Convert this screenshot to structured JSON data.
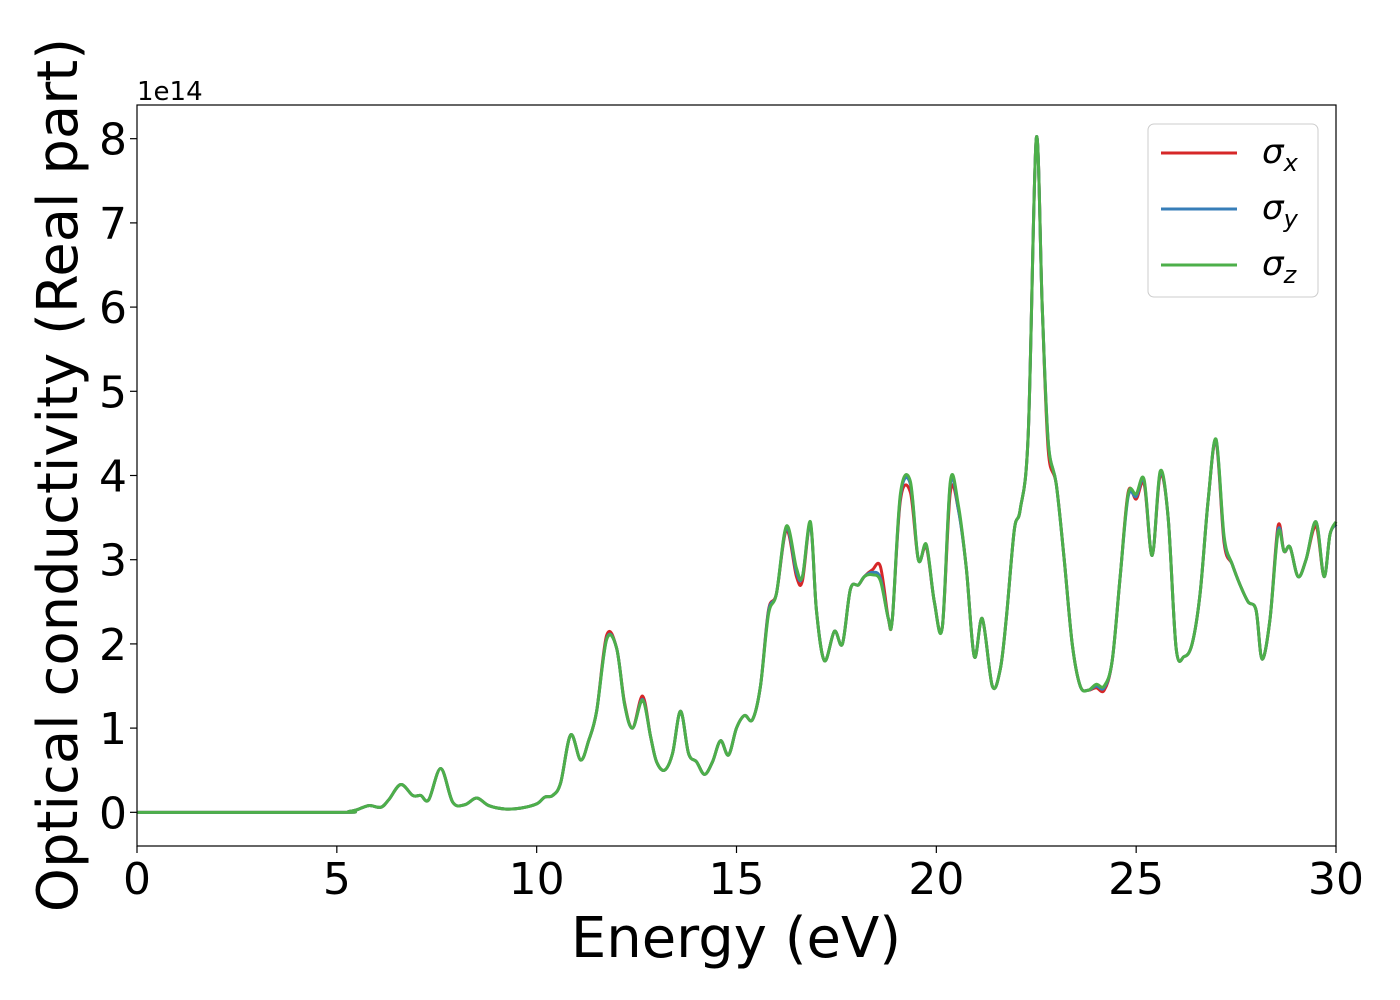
{
  "chart_data": {
    "type": "line",
    "xlabel": "Energy (eV)",
    "ylabel": "Optical conductivity (Real part)",
    "offset_text": "1e14",
    "xlim": [
      0,
      30
    ],
    "ylim": [
      -0.4,
      8.4
    ],
    "y_multiplier": 100000000000000.0,
    "xticks": [
      0,
      5,
      10,
      15,
      20,
      25,
      30
    ],
    "xtick_labels": [
      "0",
      "5",
      "10",
      "15",
      "20",
      "25",
      "30"
    ],
    "yticks": [
      0,
      1,
      2,
      3,
      4,
      5,
      6,
      7,
      8
    ],
    "ytick_labels": [
      "0",
      "1",
      "2",
      "3",
      "4",
      "5",
      "6",
      "7",
      "8"
    ],
    "grid": false,
    "legend_position": "top-right",
    "x": [
      0,
      5,
      5.3,
      5.5,
      5.8,
      6.1,
      6.3,
      6.6,
      6.9,
      7.1,
      7.3,
      7.6,
      7.9,
      8.2,
      8.5,
      8.8,
      9.2,
      9.6,
      10.0,
      10.2,
      10.4,
      10.6,
      10.85,
      11.1,
      11.3,
      11.5,
      11.75,
      12.0,
      12.2,
      12.4,
      12.65,
      12.85,
      13.0,
      13.2,
      13.4,
      13.6,
      13.8,
      14.0,
      14.2,
      14.4,
      14.6,
      14.8,
      15.0,
      15.2,
      15.4,
      15.6,
      15.8,
      16.0,
      16.25,
      16.5,
      16.65,
      16.85,
      17.0,
      17.2,
      17.45,
      17.65,
      17.85,
      18.05,
      18.2,
      18.4,
      18.6,
      18.8,
      18.9,
      19.1,
      19.35,
      19.55,
      19.75,
      19.95,
      20.15,
      20.35,
      20.55,
      20.75,
      20.95,
      21.15,
      21.4,
      21.6,
      21.75,
      21.95,
      22.1,
      22.3,
      22.5,
      22.65,
      22.8,
      23.0,
      23.2,
      23.4,
      23.6,
      23.8,
      24.0,
      24.2,
      24.4,
      24.6,
      24.8,
      25.0,
      25.2,
      25.4,
      25.6,
      25.8,
      26.0,
      26.2,
      26.4,
      26.6,
      26.8,
      27.0,
      27.2,
      27.4,
      27.6,
      27.8,
      28.0,
      28.15,
      28.35,
      28.55,
      28.7,
      28.85,
      29.05,
      29.25,
      29.5,
      29.7,
      29.85,
      30.0
    ],
    "series": [
      {
        "name": "σx",
        "color": "#d62728",
        "values": [
          0,
          0,
          0.01,
          0.03,
          0.08,
          0.06,
          0.15,
          0.33,
          0.2,
          0.2,
          0.15,
          0.52,
          0.12,
          0.09,
          0.17,
          0.08,
          0.04,
          0.05,
          0.1,
          0.18,
          0.2,
          0.35,
          0.92,
          0.62,
          0.85,
          1.2,
          2.1,
          1.95,
          1.3,
          1.0,
          1.38,
          0.9,
          0.6,
          0.5,
          0.7,
          1.2,
          0.7,
          0.6,
          0.45,
          0.6,
          0.85,
          0.68,
          1.0,
          1.15,
          1.1,
          1.5,
          2.4,
          2.6,
          3.35,
          2.8,
          2.75,
          3.42,
          2.4,
          1.8,
          2.15,
          2.0,
          2.65,
          2.7,
          2.8,
          2.88,
          2.92,
          2.3,
          2.3,
          3.7,
          3.8,
          3.0,
          3.15,
          2.5,
          2.2,
          3.8,
          3.6,
          2.9,
          1.85,
          2.3,
          1.5,
          1.7,
          2.3,
          3.35,
          3.6,
          4.5,
          8.0,
          6.0,
          4.3,
          3.9,
          3.0,
          2.0,
          1.5,
          1.45,
          1.48,
          1.45,
          1.8,
          2.8,
          3.8,
          3.72,
          3.9,
          3.05,
          4.0,
          3.5,
          1.95,
          1.85,
          2.0,
          2.6,
          3.7,
          4.4,
          3.2,
          2.95,
          2.7,
          2.5,
          2.4,
          1.82,
          2.3,
          3.4,
          3.1,
          3.15,
          2.8,
          3.0,
          3.4,
          2.8,
          3.3,
          3.42
        ]
      },
      {
        "name": "σy",
        "color": "#377eb8",
        "values": [
          0,
          0,
          0.01,
          0.03,
          0.08,
          0.06,
          0.15,
          0.33,
          0.2,
          0.2,
          0.15,
          0.52,
          0.12,
          0.09,
          0.17,
          0.08,
          0.04,
          0.05,
          0.1,
          0.18,
          0.2,
          0.35,
          0.92,
          0.62,
          0.85,
          1.2,
          2.06,
          1.95,
          1.28,
          1.0,
          1.34,
          0.9,
          0.6,
          0.5,
          0.7,
          1.2,
          0.7,
          0.6,
          0.45,
          0.6,
          0.85,
          0.68,
          1.0,
          1.15,
          1.1,
          1.5,
          2.38,
          2.6,
          3.38,
          2.85,
          2.8,
          3.42,
          2.4,
          1.8,
          2.15,
          2.0,
          2.65,
          2.7,
          2.8,
          2.85,
          2.78,
          2.3,
          2.3,
          3.75,
          3.9,
          3.0,
          3.17,
          2.5,
          2.2,
          3.9,
          3.6,
          2.9,
          1.85,
          2.3,
          1.5,
          1.7,
          2.3,
          3.35,
          3.6,
          4.5,
          8.0,
          6.0,
          4.4,
          3.9,
          3.0,
          2.0,
          1.5,
          1.45,
          1.5,
          1.48,
          1.8,
          2.8,
          3.75,
          3.75,
          3.93,
          3.05,
          4.03,
          3.5,
          1.95,
          1.85,
          2.0,
          2.6,
          3.7,
          4.42,
          3.25,
          2.95,
          2.7,
          2.5,
          2.4,
          1.82,
          2.3,
          3.35,
          3.1,
          3.15,
          2.8,
          3.0,
          3.45,
          2.8,
          3.3,
          3.42
        ]
      },
      {
        "name": "σz",
        "color": "#4daf4a",
        "values": [
          0,
          0,
          0.01,
          0.03,
          0.08,
          0.06,
          0.15,
          0.33,
          0.2,
          0.2,
          0.15,
          0.52,
          0.12,
          0.09,
          0.17,
          0.08,
          0.04,
          0.05,
          0.1,
          0.18,
          0.2,
          0.35,
          0.92,
          0.62,
          0.85,
          1.2,
          2.05,
          1.95,
          1.28,
          1.0,
          1.33,
          0.9,
          0.6,
          0.5,
          0.7,
          1.2,
          0.7,
          0.6,
          0.45,
          0.6,
          0.85,
          0.68,
          1.0,
          1.15,
          1.1,
          1.5,
          2.35,
          2.6,
          3.4,
          2.9,
          2.8,
          3.45,
          2.4,
          1.8,
          2.15,
          2.0,
          2.65,
          2.7,
          2.8,
          2.82,
          2.75,
          2.3,
          2.3,
          3.78,
          3.93,
          3.0,
          3.18,
          2.5,
          2.2,
          3.93,
          3.65,
          2.9,
          1.85,
          2.3,
          1.5,
          1.7,
          2.3,
          3.35,
          3.6,
          4.5,
          8.0,
          6.0,
          4.4,
          3.9,
          3.0,
          2.0,
          1.5,
          1.45,
          1.52,
          1.5,
          1.8,
          2.8,
          3.78,
          3.78,
          3.95,
          3.05,
          4.05,
          3.5,
          1.95,
          1.85,
          2.0,
          2.6,
          3.7,
          4.43,
          3.28,
          2.95,
          2.7,
          2.5,
          2.4,
          1.82,
          2.3,
          3.32,
          3.1,
          3.15,
          2.8,
          3.0,
          3.45,
          2.8,
          3.3,
          3.45
        ]
      }
    ]
  }
}
